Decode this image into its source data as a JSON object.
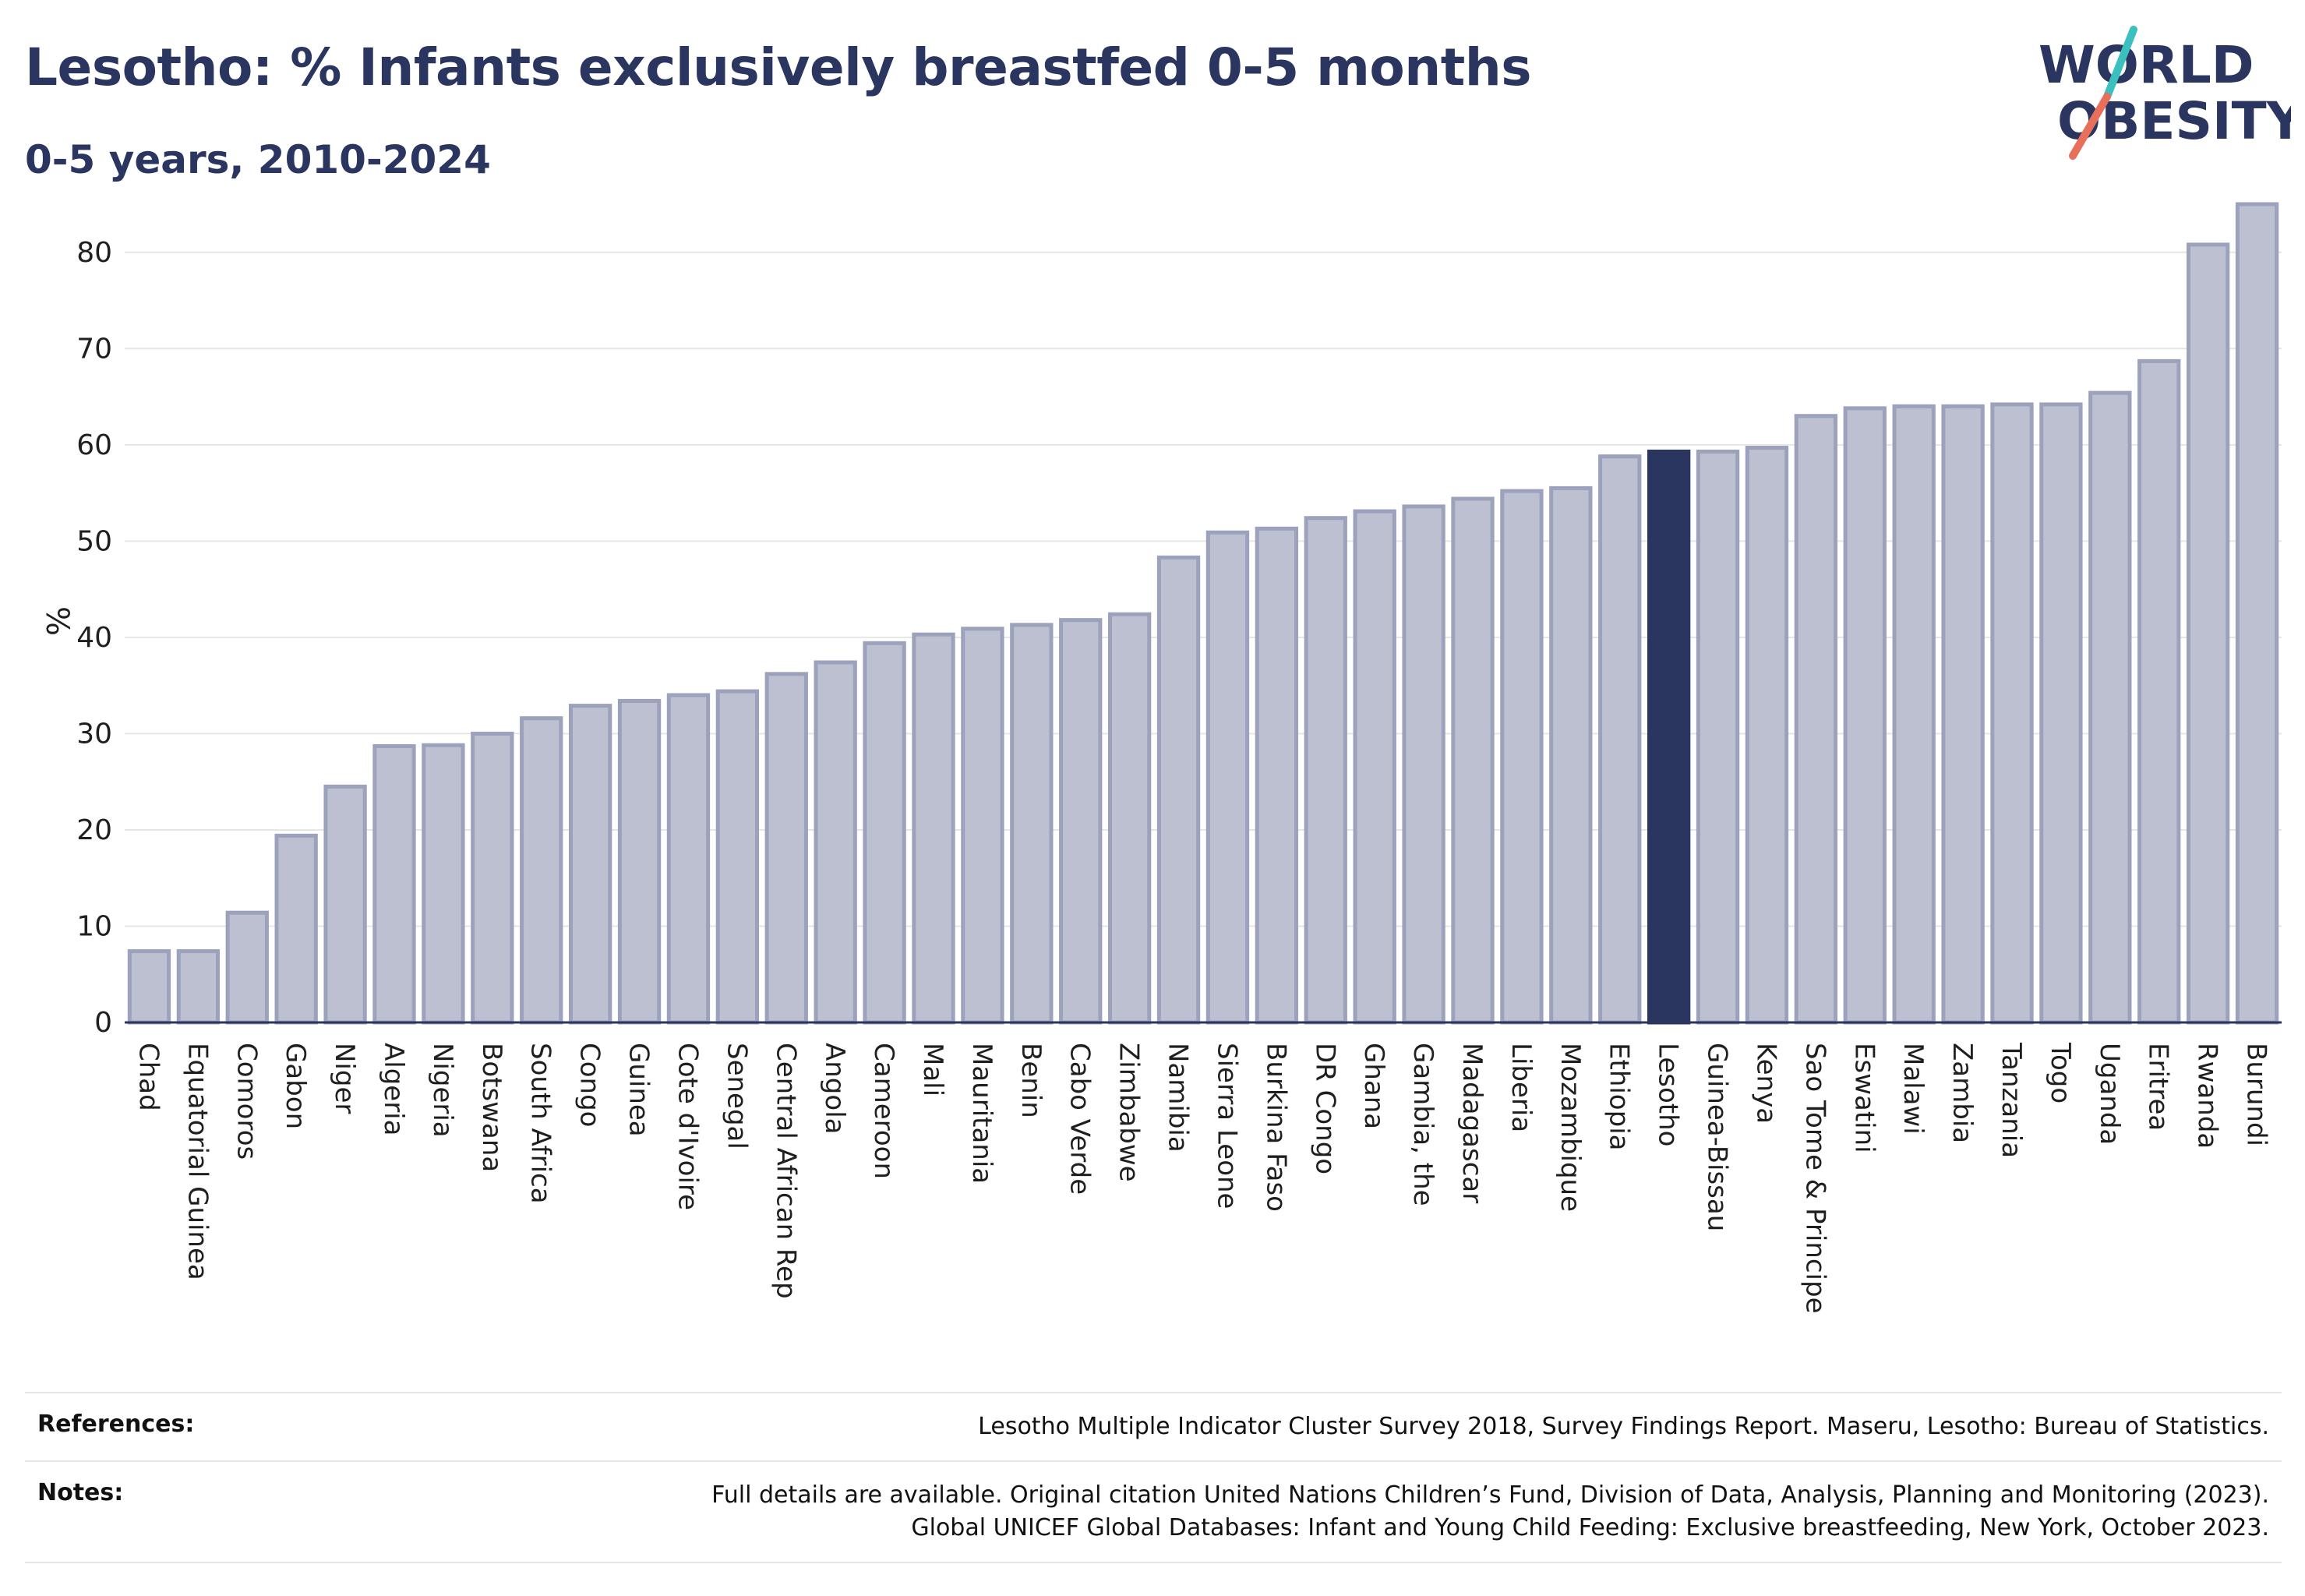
{
  "header": {
    "title": "Lesotho: % Infants exclusively breastfed 0-5 months",
    "subtitle": "0-5 years, 2010-2024"
  },
  "logo": {
    "line1": "WORLD",
    "line2": "OBESITY",
    "name": "world-obesity-logo"
  },
  "colors": {
    "bar": "#bcc0d0",
    "bar_stroke": "#9ca2bb",
    "highlight": "#2a3560",
    "accent_teal": "#3bbfbf",
    "accent_red": "#e8705a"
  },
  "chart_data": {
    "type": "bar",
    "ylabel": "%",
    "ylim": [
      0,
      85
    ],
    "yticks": [
      0,
      10,
      20,
      30,
      40,
      50,
      60,
      70,
      80
    ],
    "grid": true,
    "highlight": "Lesotho",
    "categories": [
      "Chad",
      "Equatorial Guinea",
      "Comoros",
      "Gabon",
      "Niger",
      "Algeria",
      "Nigeria",
      "Botswana",
      "South Africa",
      "Congo",
      "Guinea",
      "Cote d'Ivoire",
      "Senegal",
      "Central African Rep",
      "Angola",
      "Cameroon",
      "Mali",
      "Mauritania",
      "Benin",
      "Cabo Verde",
      "Zimbabwe",
      "Namibia",
      "Sierra Leone",
      "Burkina Faso",
      "DR Congo",
      "Ghana",
      "Gambia, the",
      "Madagascar",
      "Liberia",
      "Mozambique",
      "Ethiopia",
      "Lesotho",
      "Guinea-Bissau",
      "Kenya",
      "Sao Tome & Principe",
      "Eswatini",
      "Malawi",
      "Zambia",
      "Tanzania",
      "Togo",
      "Uganda",
      "Eritrea",
      "Rwanda",
      "Burundi"
    ],
    "values": [
      7.4,
      7.4,
      11.4,
      19.4,
      24.5,
      28.7,
      28.8,
      30.0,
      31.6,
      32.9,
      33.4,
      34.0,
      34.4,
      36.2,
      37.4,
      39.4,
      40.3,
      40.9,
      41.3,
      41.8,
      42.4,
      48.3,
      50.9,
      51.3,
      52.4,
      53.1,
      53.6,
      54.4,
      55.2,
      55.5,
      58.8,
      59.3,
      59.3,
      59.7,
      63.0,
      63.8,
      64.0,
      64.0,
      64.2,
      64.2,
      65.4,
      68.7,
      80.8,
      85.0
    ]
  },
  "footer": {
    "references_label": "References:",
    "references_text": "Lesotho Multiple Indicator Cluster Survey 2018, Survey Findings Report. Maseru, Lesotho: Bureau of Statistics.",
    "notes_label": "Notes:",
    "notes_line1": "Full details are available. Original citation United Nations Children’s Fund, Division of Data, Analysis, Planning and Monitoring (2023).",
    "notes_line2": "Global UNICEF Global Databases: Infant and Young Child Feeding: Exclusive breastfeeding, New York, October 2023."
  }
}
